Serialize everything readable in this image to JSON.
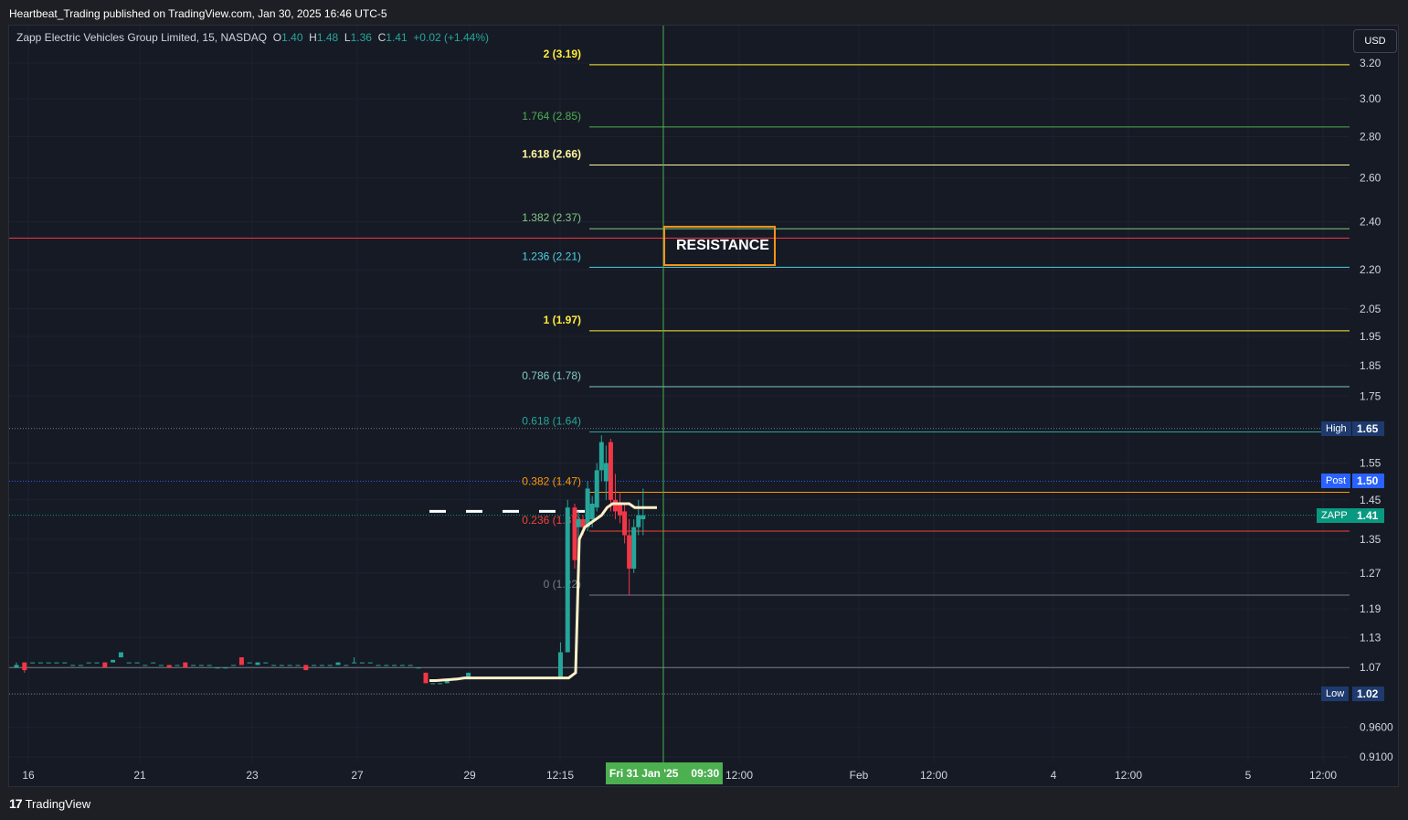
{
  "header": {
    "published": "Heartbeat_Trading published on TradingView.com, Jan 30, 2025 16:46 UTC-5"
  },
  "legend": {
    "symbol": "Zapp Electric Vehicles Group Limited, 15, NASDAQ",
    "o_label": "O",
    "o_value": "1.40",
    "h_label": "H",
    "h_value": "1.48",
    "l_label": "L",
    "l_value": "1.36",
    "c_label": "C",
    "c_value": "1.41",
    "change": "+0.02 (+1.44%)"
  },
  "toolbar": {
    "currency_label": "USD"
  },
  "annotation": {
    "resistance_label": "RESISTANCE"
  },
  "footer": {
    "brand": "TradingView"
  },
  "colors": {
    "background": "#161a25",
    "bullish": "#26a69a",
    "bearish": "#f23645",
    "resistance_box": "#f7931a",
    "time_marker": "#4caf50",
    "vwap": "#fff1c9"
  },
  "price_tags": [
    {
      "label": "High",
      "value": "1.65",
      "color": "#1e3a6e",
      "price": 1.65
    },
    {
      "label": "Post",
      "value": "1.50",
      "color": "#2962ff",
      "price": 1.5
    },
    {
      "label": "ZAPP",
      "value": "1.41",
      "color": "#089981",
      "price": 1.41
    },
    {
      "label": "Low",
      "value": "1.02",
      "color": "#1e3a6e",
      "price": 1.02
    }
  ],
  "date_marker": {
    "date": "Fri 31 Jan '25",
    "time": "09:30"
  },
  "chart_data": {
    "type": "candlestick",
    "symbol": "ZAPP",
    "interval": "15",
    "y_scale": "log",
    "ylim": [
      0.89,
      3.3
    ],
    "y_ticks": [
      "3.20",
      "3.00",
      "2.80",
      "2.60",
      "2.40",
      "2.20",
      "2.05",
      "1.95",
      "1.85",
      "1.75",
      "1.55",
      "1.45",
      "1.35",
      "1.27",
      "1.19",
      "1.13",
      "1.07",
      "1.02",
      "0.9600",
      "0.9100"
    ],
    "x_ticks": [
      "16",
      "21",
      "23",
      "27",
      "29",
      "12:15",
      "12:00",
      "Feb",
      "12:00",
      "4",
      "12:00",
      "5",
      "12:00"
    ],
    "fib_levels": [
      {
        "label": "2 (3.19)",
        "ratio": 2,
        "price": 3.19,
        "color": "#ffeb3b"
      },
      {
        "label": "1.764 (2.85)",
        "ratio": 1.764,
        "price": 2.85,
        "color": "#4caf50"
      },
      {
        "label": "1.618 (2.66)",
        "ratio": 1.618,
        "price": 2.66,
        "color": "#fff59d"
      },
      {
        "label": "1.382 (2.37)",
        "ratio": 1.382,
        "price": 2.37,
        "color": "#81c784"
      },
      {
        "label": "1.236 (2.21)",
        "ratio": 1.236,
        "price": 2.21,
        "color": "#4dd0e1"
      },
      {
        "label": "1 (1.97)",
        "ratio": 1,
        "price": 1.97,
        "color": "#ffeb3b"
      },
      {
        "label": "0.786 (1.78)",
        "ratio": 0.786,
        "price": 1.78,
        "color": "#80cbc4"
      },
      {
        "label": "0.618 (1.64)",
        "ratio": 0.618,
        "price": 1.64,
        "color": "#26a69a"
      },
      {
        "label": "0.382 (1.47)",
        "ratio": 0.382,
        "price": 1.47,
        "color": "#ff9800"
      },
      {
        "label": "0.236 (1.37)",
        "ratio": 0.236,
        "price": 1.37,
        "color": "#f44336"
      },
      {
        "label": "0 (1.22)",
        "ratio": 0,
        "price": 1.22,
        "color": "#787b86"
      }
    ],
    "horizontal_lines": [
      {
        "price": 2.33,
        "color": "#f23645",
        "style": "solid"
      },
      {
        "price": 1.07,
        "color": "#787b86",
        "style": "solid"
      },
      {
        "price": 1.65,
        "color": "#787b86",
        "style": "dotted"
      },
      {
        "price": 1.5,
        "color": "#2962ff",
        "style": "dotted"
      },
      {
        "price": 1.41,
        "color": "#089981",
        "style": "dotted"
      },
      {
        "price": 1.02,
        "color": "#787b86",
        "style": "dotted"
      },
      {
        "price": 1.42,
        "color": "#ffffff",
        "style": "dashed"
      }
    ],
    "candles": [
      {
        "o": 1.07,
        "h": 1.08,
        "l": 1.07,
        "c": 1.075
      },
      {
        "o": 1.08,
        "h": 1.08,
        "l": 1.06,
        "c": 1.065
      },
      {
        "o": 1.08,
        "h": 1.08,
        "l": 1.08,
        "c": 1.08
      },
      {
        "o": 1.08,
        "h": 1.08,
        "l": 1.08,
        "c": 1.08
      },
      {
        "o": 1.08,
        "h": 1.08,
        "l": 1.08,
        "c": 1.08
      },
      {
        "o": 1.08,
        "h": 1.08,
        "l": 1.08,
        "c": 1.08
      },
      {
        "o": 1.08,
        "h": 1.08,
        "l": 1.08,
        "c": 1.08
      },
      {
        "o": 1.075,
        "h": 1.075,
        "l": 1.075,
        "c": 1.075
      },
      {
        "o": 1.075,
        "h": 1.075,
        "l": 1.075,
        "c": 1.075
      },
      {
        "o": 1.08,
        "h": 1.08,
        "l": 1.08,
        "c": 1.08
      },
      {
        "o": 1.08,
        "h": 1.08,
        "l": 1.08,
        "c": 1.08
      },
      {
        "o": 1.08,
        "h": 1.08,
        "l": 1.07,
        "c": 1.07
      },
      {
        "o": 1.08,
        "h": 1.085,
        "l": 1.08,
        "c": 1.085
      },
      {
        "o": 1.09,
        "h": 1.1,
        "l": 1.09,
        "c": 1.1
      },
      {
        "o": 1.08,
        "h": 1.08,
        "l": 1.08,
        "c": 1.08
      },
      {
        "o": 1.08,
        "h": 1.08,
        "l": 1.08,
        "c": 1.08
      },
      {
        "o": 1.075,
        "h": 1.075,
        "l": 1.075,
        "c": 1.075
      },
      {
        "o": 1.08,
        "h": 1.08,
        "l": 1.08,
        "c": 1.08
      },
      {
        "o": 1.075,
        "h": 1.075,
        "l": 1.075,
        "c": 1.075
      },
      {
        "o": 1.075,
        "h": 1.075,
        "l": 1.07,
        "c": 1.07
      },
      {
        "o": 1.075,
        "h": 1.075,
        "l": 1.075,
        "c": 1.075
      },
      {
        "o": 1.08,
        "h": 1.08,
        "l": 1.07,
        "c": 1.07
      },
      {
        "o": 1.075,
        "h": 1.075,
        "l": 1.075,
        "c": 1.075
      },
      {
        "o": 1.075,
        "h": 1.075,
        "l": 1.075,
        "c": 1.075
      },
      {
        "o": 1.075,
        "h": 1.075,
        "l": 1.075,
        "c": 1.075
      },
      {
        "o": 1.07,
        "h": 1.07,
        "l": 1.07,
        "c": 1.07
      },
      {
        "o": 1.07,
        "h": 1.07,
        "l": 1.07,
        "c": 1.07
      },
      {
        "o": 1.075,
        "h": 1.075,
        "l": 1.075,
        "c": 1.075
      },
      {
        "o": 1.09,
        "h": 1.09,
        "l": 1.075,
        "c": 1.075
      },
      {
        "o": 1.08,
        "h": 1.08,
        "l": 1.08,
        "c": 1.08
      },
      {
        "o": 1.075,
        "h": 1.08,
        "l": 1.075,
        "c": 1.08
      },
      {
        "o": 1.08,
        "h": 1.08,
        "l": 1.08,
        "c": 1.08
      },
      {
        "o": 1.075,
        "h": 1.075,
        "l": 1.075,
        "c": 1.075
      },
      {
        "o": 1.075,
        "h": 1.075,
        "l": 1.075,
        "c": 1.075
      },
      {
        "o": 1.075,
        "h": 1.075,
        "l": 1.075,
        "c": 1.075
      },
      {
        "o": 1.075,
        "h": 1.075,
        "l": 1.075,
        "c": 1.075
      },
      {
        "o": 1.075,
        "h": 1.075,
        "l": 1.065,
        "c": 1.065
      },
      {
        "o": 1.075,
        "h": 1.075,
        "l": 1.075,
        "c": 1.075
      },
      {
        "o": 1.075,
        "h": 1.075,
        "l": 1.075,
        "c": 1.075
      },
      {
        "o": 1.075,
        "h": 1.075,
        "l": 1.075,
        "c": 1.075
      },
      {
        "o": 1.075,
        "h": 1.08,
        "l": 1.075,
        "c": 1.08
      },
      {
        "o": 1.075,
        "h": 1.075,
        "l": 1.075,
        "c": 1.075
      },
      {
        "o": 1.08,
        "h": 1.09,
        "l": 1.08,
        "c": 1.08
      },
      {
        "o": 1.08,
        "h": 1.08,
        "l": 1.08,
        "c": 1.08
      },
      {
        "o": 1.08,
        "h": 1.08,
        "l": 1.08,
        "c": 1.08
      },
      {
        "o": 1.075,
        "h": 1.075,
        "l": 1.075,
        "c": 1.075
      },
      {
        "o": 1.075,
        "h": 1.075,
        "l": 1.075,
        "c": 1.075
      },
      {
        "o": 1.075,
        "h": 1.075,
        "l": 1.075,
        "c": 1.075
      },
      {
        "o": 1.075,
        "h": 1.075,
        "l": 1.075,
        "c": 1.075
      },
      {
        "o": 1.075,
        "h": 1.075,
        "l": 1.075,
        "c": 1.075
      },
      {
        "o": 1.07,
        "h": 1.07,
        "l": 1.07,
        "c": 1.07
      },
      {
        "o": 1.06,
        "h": 1.06,
        "l": 1.04,
        "c": 1.04
      },
      {
        "o": 1.04,
        "h": 1.04,
        "l": 1.04,
        "c": 1.04
      },
      {
        "o": 1.04,
        "h": 1.04,
        "l": 1.04,
        "c": 1.04
      },
      {
        "o": 1.04,
        "h": 1.045,
        "l": 1.04,
        "c": 1.045
      },
      {
        "o": 1.045,
        "h": 1.05,
        "l": 1.045,
        "c": 1.05
      },
      {
        "o": 1.05,
        "h": 1.05,
        "l": 1.05,
        "c": 1.05
      },
      {
        "o": 1.05,
        "h": 1.06,
        "l": 1.05,
        "c": 1.06
      },
      {
        "o": 1.05,
        "h": 1.05,
        "l": 1.05,
        "c": 1.05
      },
      {
        "o": 1.05,
        "h": 1.05,
        "l": 1.05,
        "c": 1.05
      },
      {
        "o": 1.05,
        "h": 1.05,
        "l": 1.05,
        "c": 1.05
      },
      {
        "o": 1.05,
        "h": 1.05,
        "l": 1.05,
        "c": 1.05
      },
      {
        "o": 1.05,
        "h": 1.05,
        "l": 1.05,
        "c": 1.05
      },
      {
        "o": 1.05,
        "h": 1.05,
        "l": 1.05,
        "c": 1.05
      },
      {
        "o": 1.05,
        "h": 1.05,
        "l": 1.05,
        "c": 1.05
      },
      {
        "o": 1.05,
        "h": 1.05,
        "l": 1.05,
        "c": 1.05
      },
      {
        "o": 1.05,
        "h": 1.05,
        "l": 1.05,
        "c": 1.05
      },
      {
        "o": 1.05,
        "h": 1.05,
        "l": 1.05,
        "c": 1.05
      },
      {
        "o": 1.05,
        "h": 1.05,
        "l": 1.05,
        "c": 1.05
      },
      {
        "o": 1.05,
        "h": 1.05,
        "l": 1.05,
        "c": 1.05
      },
      {
        "o": 1.05,
        "h": 1.12,
        "l": 1.05,
        "c": 1.1
      },
      {
        "o": 1.1,
        "h": 1.45,
        "l": 1.1,
        "c": 1.43
      },
      {
        "o": 1.43,
        "h": 1.44,
        "l": 1.28,
        "c": 1.3
      },
      {
        "o": 1.38,
        "h": 1.42,
        "l": 1.33,
        "c": 1.4
      },
      {
        "o": 1.4,
        "h": 1.41,
        "l": 1.36,
        "c": 1.38
      },
      {
        "o": 1.38,
        "h": 1.5,
        "l": 1.37,
        "c": 1.48
      },
      {
        "o": 1.4,
        "h": 1.46,
        "l": 1.38,
        "c": 1.44
      },
      {
        "o": 1.43,
        "h": 1.55,
        "l": 1.42,
        "c": 1.53
      },
      {
        "o": 1.53,
        "h": 1.63,
        "l": 1.5,
        "c": 1.61
      },
      {
        "o": 1.5,
        "h": 1.6,
        "l": 1.45,
        "c": 1.55
      },
      {
        "o": 1.61,
        "h": 1.62,
        "l": 1.42,
        "c": 1.45
      },
      {
        "o": 1.45,
        "h": 1.52,
        "l": 1.4,
        "c": 1.42
      },
      {
        "o": 1.44,
        "h": 1.47,
        "l": 1.39,
        "c": 1.41
      },
      {
        "o": 1.42,
        "h": 1.44,
        "l": 1.34,
        "c": 1.36
      },
      {
        "o": 1.36,
        "h": 1.4,
        "l": 1.22,
        "c": 1.28
      },
      {
        "o": 1.28,
        "h": 1.4,
        "l": 1.27,
        "c": 1.38
      },
      {
        "o": 1.38,
        "h": 1.45,
        "l": 1.36,
        "c": 1.41
      },
      {
        "o": 1.4,
        "h": 1.48,
        "l": 1.36,
        "c": 1.41
      }
    ],
    "vwap": [
      1.045,
      1.045,
      1.046,
      1.047,
      1.048,
      1.05,
      1.05,
      1.05,
      1.05,
      1.05,
      1.05,
      1.05,
      1.05,
      1.05,
      1.05,
      1.05,
      1.05,
      1.05,
      1.05,
      1.05,
      1.05,
      1.06,
      1.35,
      1.38,
      1.39,
      1.4,
      1.41,
      1.43,
      1.44,
      1.44,
      1.44,
      1.44,
      1.43,
      1.43,
      1.43,
      1.43,
      1.43
    ]
  }
}
